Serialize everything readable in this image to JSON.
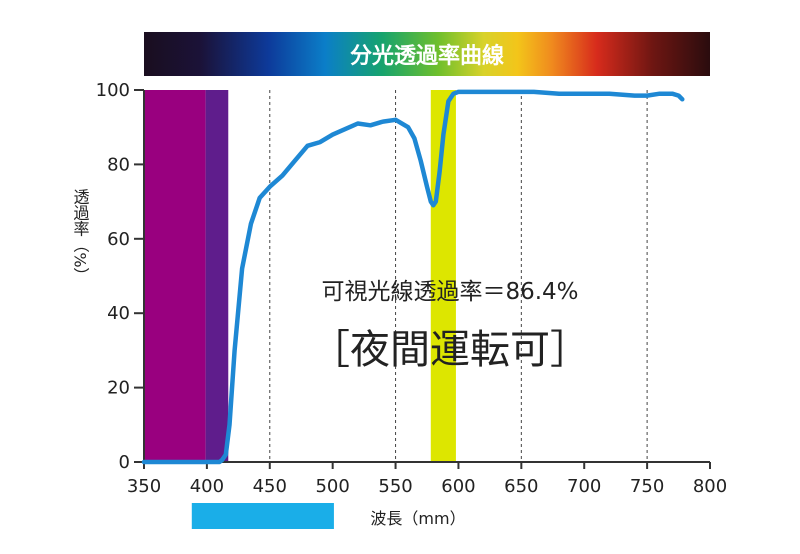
{
  "chart_data": {
    "type": "line",
    "title": "分光透過率曲線",
    "xlabel": "波長（mm）",
    "ylabel": "透過率（%）",
    "xlim": [
      350,
      800
    ],
    "ylim": [
      0,
      100
    ],
    "x_ticks": [
      350,
      400,
      450,
      500,
      550,
      600,
      650,
      700,
      750,
      800
    ],
    "y_ticks": [
      0,
      20,
      40,
      60,
      80,
      100
    ],
    "grid": "vertical dashed at 450, 550, 650, 750",
    "series": [
      {
        "color": "#1e88d4",
        "x": [
          350,
          400,
          410,
          412,
          415,
          418,
          422,
          428,
          435,
          442,
          450,
          460,
          470,
          480,
          490,
          500,
          510,
          520,
          530,
          540,
          550,
          560,
          565,
          570,
          575,
          578,
          580,
          582,
          585,
          588,
          592,
          596,
          600,
          610,
          620,
          640,
          660,
          680,
          700,
          720,
          740,
          750,
          760,
          770,
          775,
          778
        ],
        "y": [
          0,
          0,
          0,
          0.5,
          2,
          10,
          30,
          52,
          64,
          71,
          74,
          77,
          81,
          85,
          86,
          88,
          89.5,
          91,
          90.5,
          91.5,
          92,
          90,
          87,
          81,
          74,
          70,
          69,
          70,
          78,
          88,
          97,
          99,
          99.5,
          99.5,
          99.5,
          99.5,
          99.5,
          99,
          99,
          99,
          98.5,
          98.5,
          99,
          99,
          98.5,
          97.5
        ]
      }
    ],
    "highlights": [
      {
        "label": "",
        "x_from": 350,
        "x_to": 399,
        "color": "#99007f"
      },
      {
        "label": "",
        "x_from": 399,
        "x_to": 417,
        "color": "#5f1d8c"
      },
      {
        "label": "",
        "x_from": 578,
        "x_to": 598,
        "color": "#dde600"
      }
    ],
    "markers": [
      {
        "label": "",
        "x_from": 388,
        "x_to": 501,
        "color": "#1aaee8"
      }
    ],
    "annotations": [
      "可視光線透過率＝86.4%",
      "［夜間運転可］"
    ]
  }
}
